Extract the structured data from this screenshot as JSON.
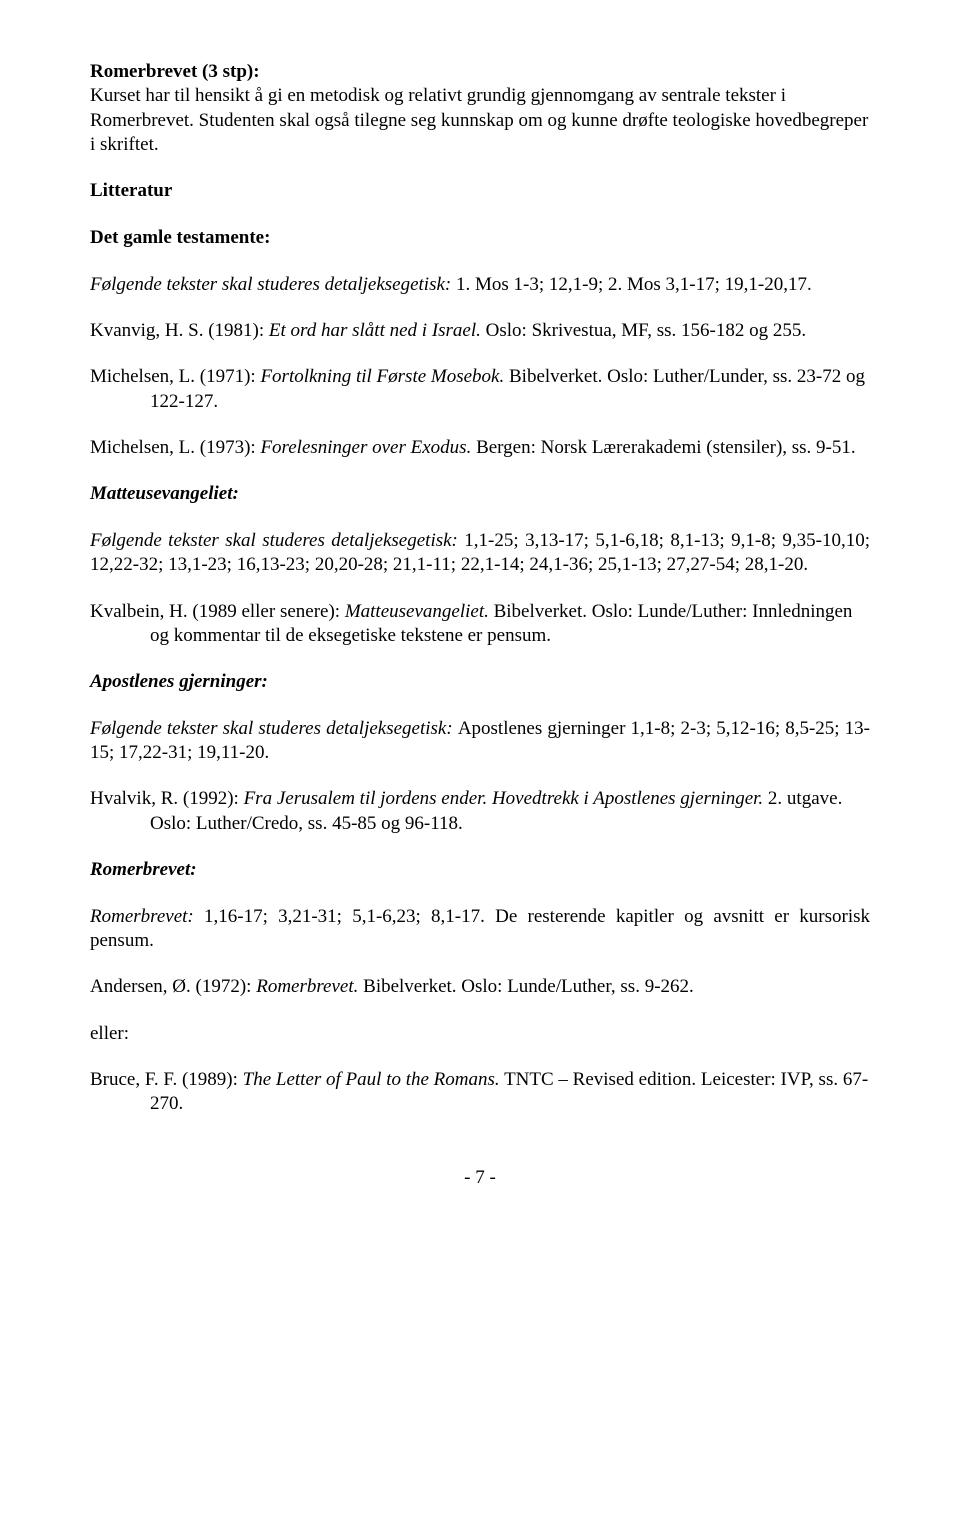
{
  "heading1": {
    "title": "Romerbrevet (3 stp):",
    "body": "Kurset har til hensikt å gi en metodisk og relativt grundig gjennomgang av sentrale tekster i Romerbrevet. Studenten skal også tilegne seg kunnskap om og kunne drøfte teologiske hovedbegreper i skriftet."
  },
  "litHeading": "Litteratur",
  "gt": {
    "heading": "Det gamle testamente:",
    "intro": "Følgende tekster skal studeres detaljeksegetisk: ",
    "introText": "1. Mos 1-3; 12,1-9; 2. Mos 3,1-17; 19,1-20,17.",
    "ref1a": "Kvanvig, H. S. (1981): ",
    "ref1b": "Et ord har slått ned i Israel.",
    "ref1c": " Oslo: Skrivestua, MF, ss. 156-182 og 255.",
    "ref2a": "Michelsen, L. (1971): ",
    "ref2b": "Fortolkning til Første Mosebok.",
    "ref2c": " Bibelverket. Oslo: Luther/Lunder, ss. 23-72 og 122-127.",
    "ref3a": "Michelsen, L. (1973): ",
    "ref3b": "Forelesninger over Exodus.",
    "ref3c": " Bergen: Norsk Lærerakademi (stensiler), ss. 9-51."
  },
  "matt": {
    "heading": "Matteusevangeliet:",
    "intro": "Følgende tekster skal studeres detaljeksegetisk:",
    "introText": " 1,1-25; 3,13-17; 5,1-6,18; 8,1-13; 9,1-8; 9,35-10,10; 12,22-32; 13,1-23; 16,13-23; 20,20-28; 21,1-11; 22,1-14; 24,1-36; 25,1-13; 27,27-54; 28,1-20.",
    "ref1a": "Kvalbein, H. (1989 eller senere): ",
    "ref1b": "Matteusevangeliet.",
    "ref1c": " Bibelverket. Oslo: Lunde/Luther: Innledningen og kommentar til de eksegetiske tekstene er pensum."
  },
  "apg": {
    "heading": "Apostlenes gjerninger:",
    "intro": "Følgende tekster skal studeres detaljeksegetisk: ",
    "introText": "Apostlenes gjerninger 1,1-8; 2-3; 5,12-16; 8,5-25; 13-15; 17,22-31; 19,11-20.",
    "ref1a": "Hvalvik, R. (1992): ",
    "ref1b": "Fra Jerusalem til jordens ender. Hovedtrekk i Apostlenes gjerninger.",
    "ref1c": " 2. utgave. Oslo: Luther/Credo, ss. 45-85 og 96-118."
  },
  "rom": {
    "heading": "Romerbrevet:",
    "intro": "Romerbrevet:",
    "introText": " 1,16-17; 3,21-31; 5,1-6,23; 8,1-17. De resterende kapitler og avsnitt er kursorisk pensum.",
    "ref1a": "Andersen, Ø. (1972): ",
    "ref1b": "Romerbrevet.",
    "ref1c": " Bibelverket. Oslo: Lunde/Luther, ss. 9-262.",
    "eller": "eller:",
    "ref2a": "Bruce, F. F. (1989): ",
    "ref2b": "The Letter of Paul to the Romans.",
    "ref2c": " TNTC – Revised edition. Leicester: IVP, ss. 67-270."
  },
  "pageNumber": "- 7 -"
}
